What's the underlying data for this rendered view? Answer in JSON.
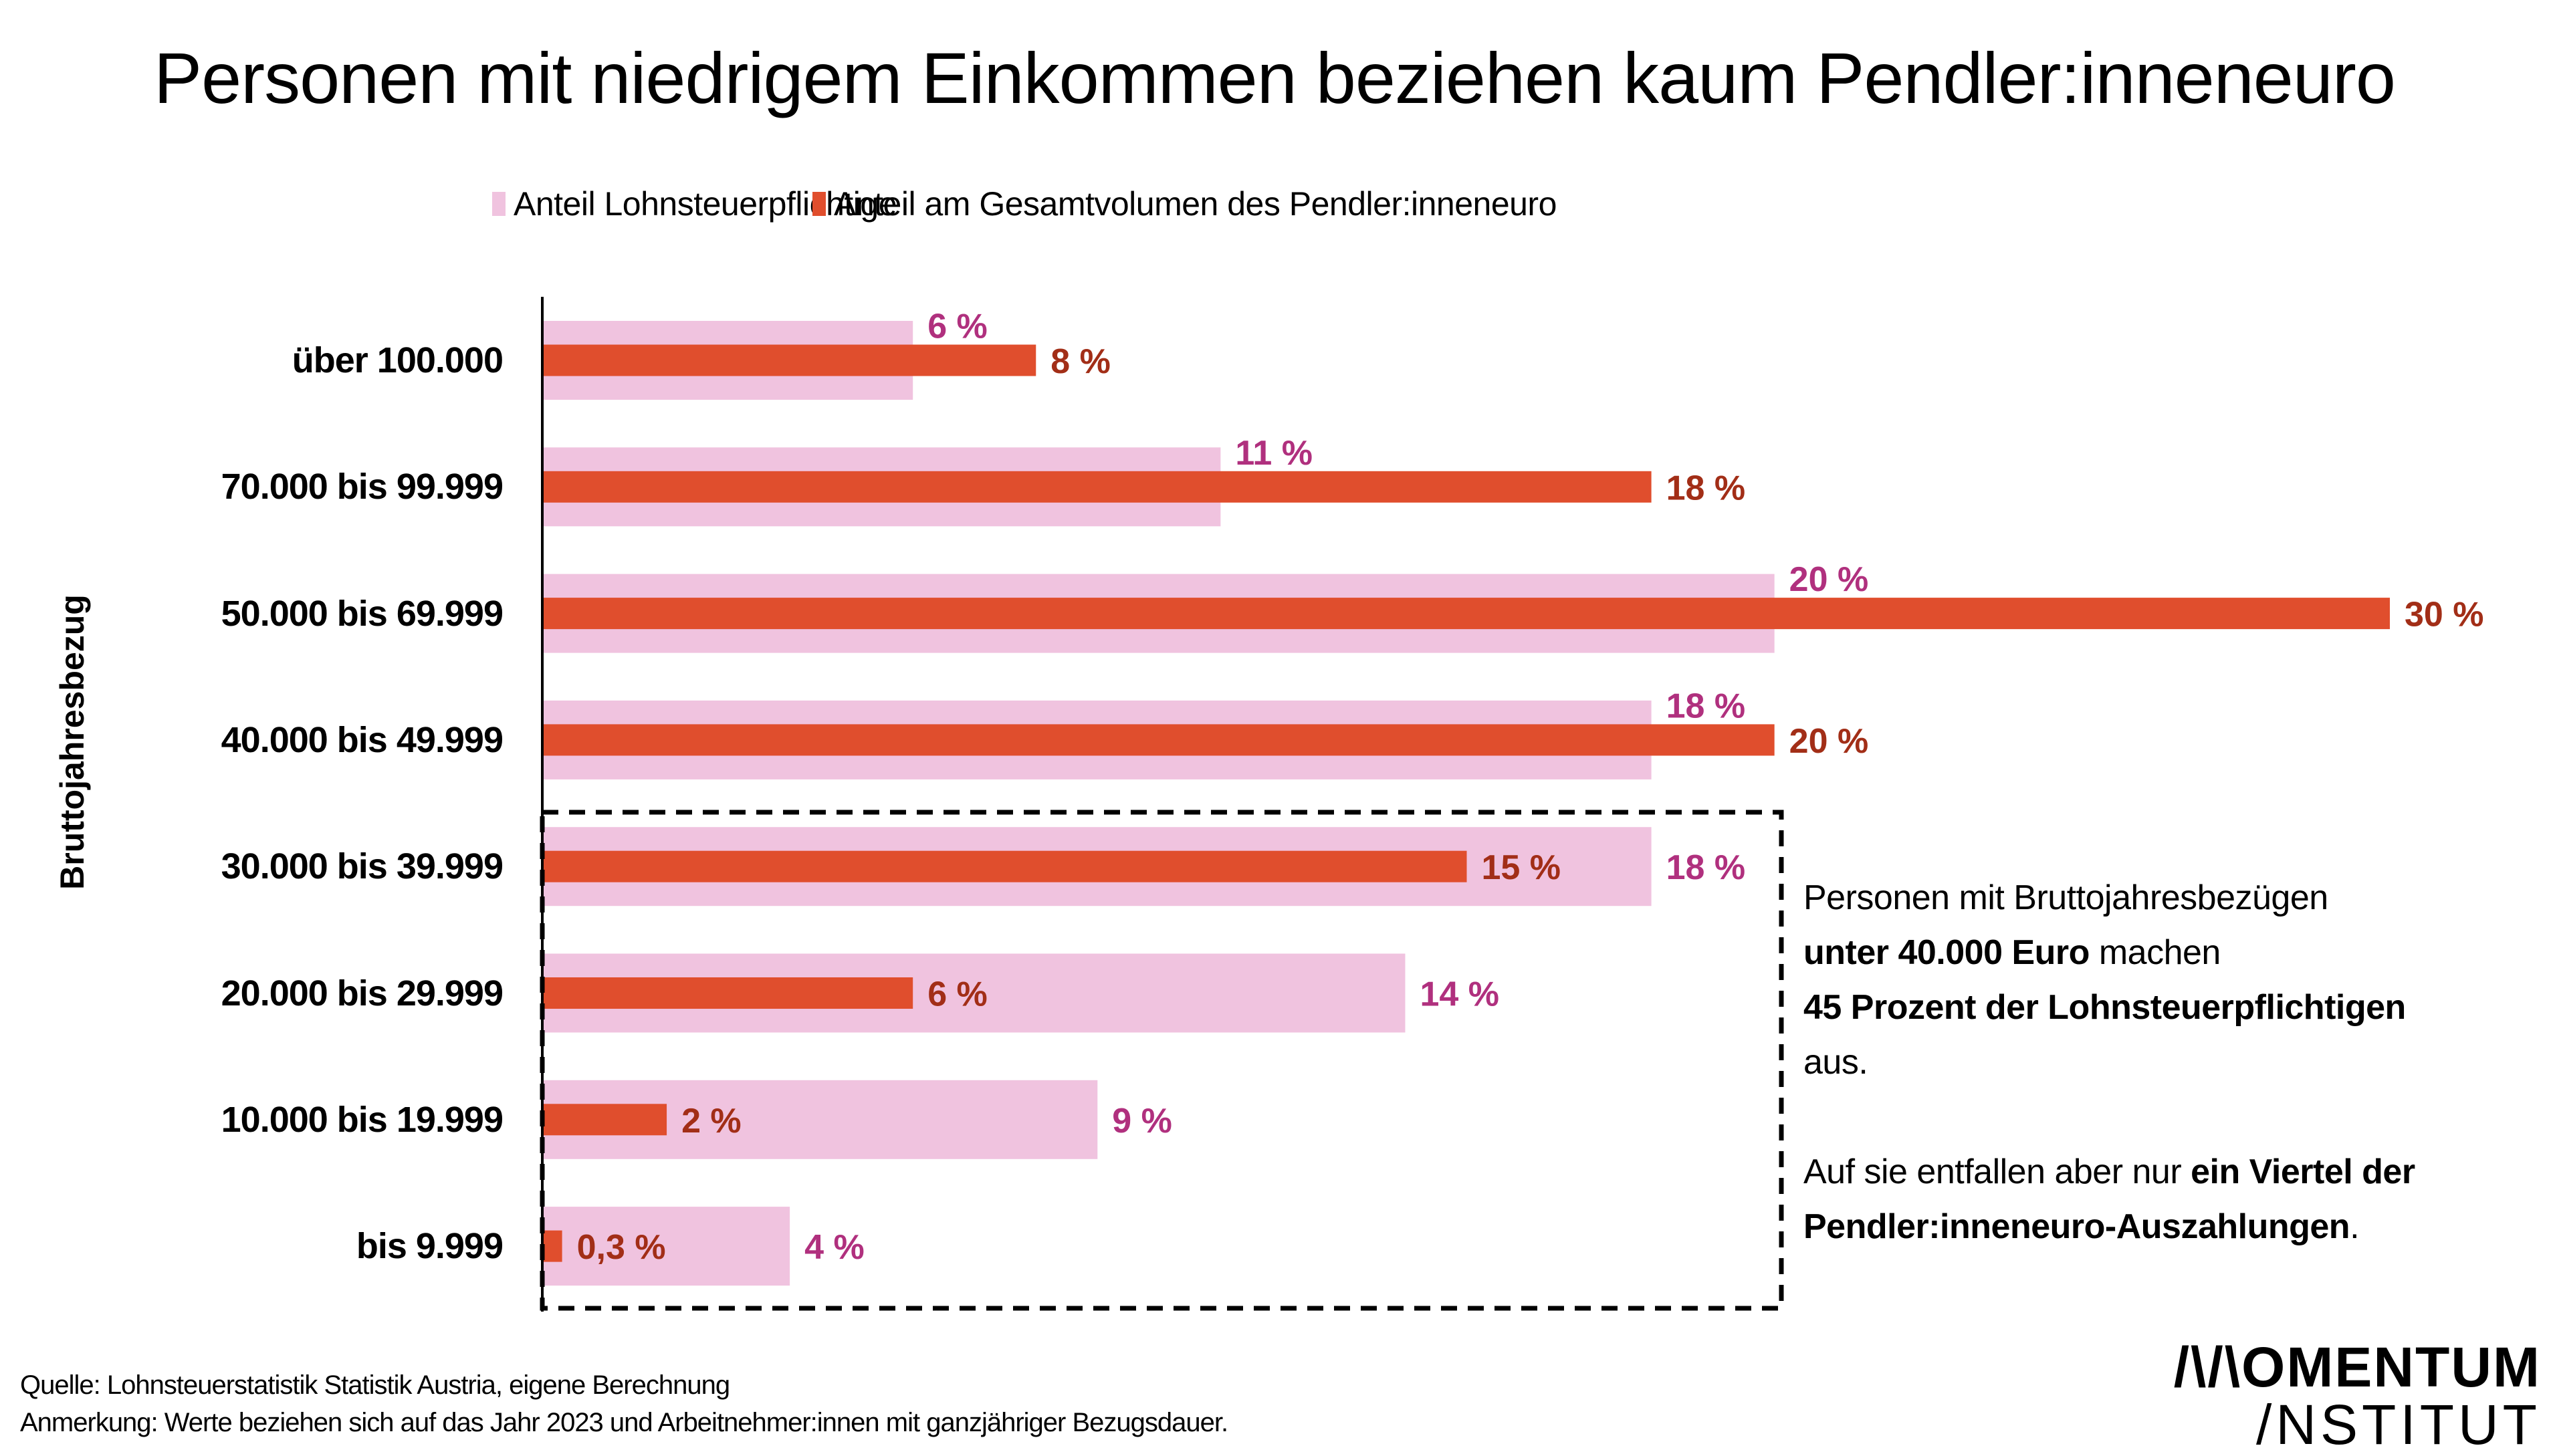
{
  "colors": {
    "pink_bar": "#F0C3DF",
    "red_bar": "#E04E2D",
    "pink_label": "#B0307E",
    "red_label": "#A22E17",
    "axis": "#000000",
    "text": "#000000"
  },
  "chart_data": {
    "type": "bar",
    "orientation": "horizontal",
    "title": "Personen mit niedrigem Einkommen beziehen kaum Pendler:inneneuro",
    "xlabel": "",
    "ylabel": "Bruttojahresbezug",
    "xlim": [
      0,
      30
    ],
    "grid": false,
    "legend_position": "top-center",
    "categories": [
      "über 100.000",
      "70.000 bis 99.999",
      "50.000 bis 69.999",
      "40.000 bis 49.999",
      "30.000 bis 39.999",
      "20.000 bis 29.999",
      "10.000 bis 19.999",
      "bis 9.999"
    ],
    "series": [
      {
        "name": "Anteil Lohnsteuerpflichtige",
        "color": "#F0C3DF",
        "values": [
          6,
          11,
          20,
          18,
          18,
          14,
          9,
          4
        ],
        "labels": [
          "6 %",
          "11 %",
          "20 %",
          "18 %",
          "18 %",
          "14 %",
          "9 %",
          "4 %"
        ]
      },
      {
        "name": "Anteil am Gesamtvolumen des Pendler:inneneuro",
        "color": "#E04E2D",
        "values": [
          8,
          18,
          30,
          20,
          15,
          6,
          2,
          0.3
        ],
        "labels": [
          "8 %",
          "18 %",
          "30 %",
          "20 %",
          "15 %",
          "6 %",
          "2 %",
          "0,3 %"
        ]
      }
    ],
    "highlight_box": {
      "categories": [
        "30.000 bis 39.999",
        "20.000 bis 29.999",
        "10.000 bis 19.999",
        "bis 9.999"
      ],
      "style": "dashed"
    },
    "annotation": {
      "paragraph1": [
        {
          "text": "Personen mit Bruttojahresbezügen",
          "bold": false
        },
        {
          "text": "unter 40.000 Euro",
          "bold": true
        },
        {
          "text": " machen",
          "bold": false
        },
        {
          "text": "45 Prozent der Lohnsteuerpflichtigen",
          "bold": true
        },
        {
          "text": "aus.",
          "bold": false
        }
      ],
      "paragraph2": [
        {
          "text": "Auf sie entfallen aber nur ",
          "bold": false
        },
        {
          "text": "ein Viertel der",
          "bold": true
        },
        {
          "text": "Pendler:inneneuro-Auszahlungen",
          "bold": true
        },
        {
          "text": ".",
          "bold": false
        }
      ]
    }
  },
  "footer": {
    "source": "Quelle: Lohnsteuerstatistik Statistik Austria, eigene Berechnung",
    "note": "Anmerkung: Werte beziehen sich auf das Jahr 2023 und Arbeitnehmer:innen mit ganzjähriger Bezugsdauer."
  },
  "logo": {
    "line1": "/\\/\\OMENTUM",
    "line2": "/NSTITUT"
  }
}
